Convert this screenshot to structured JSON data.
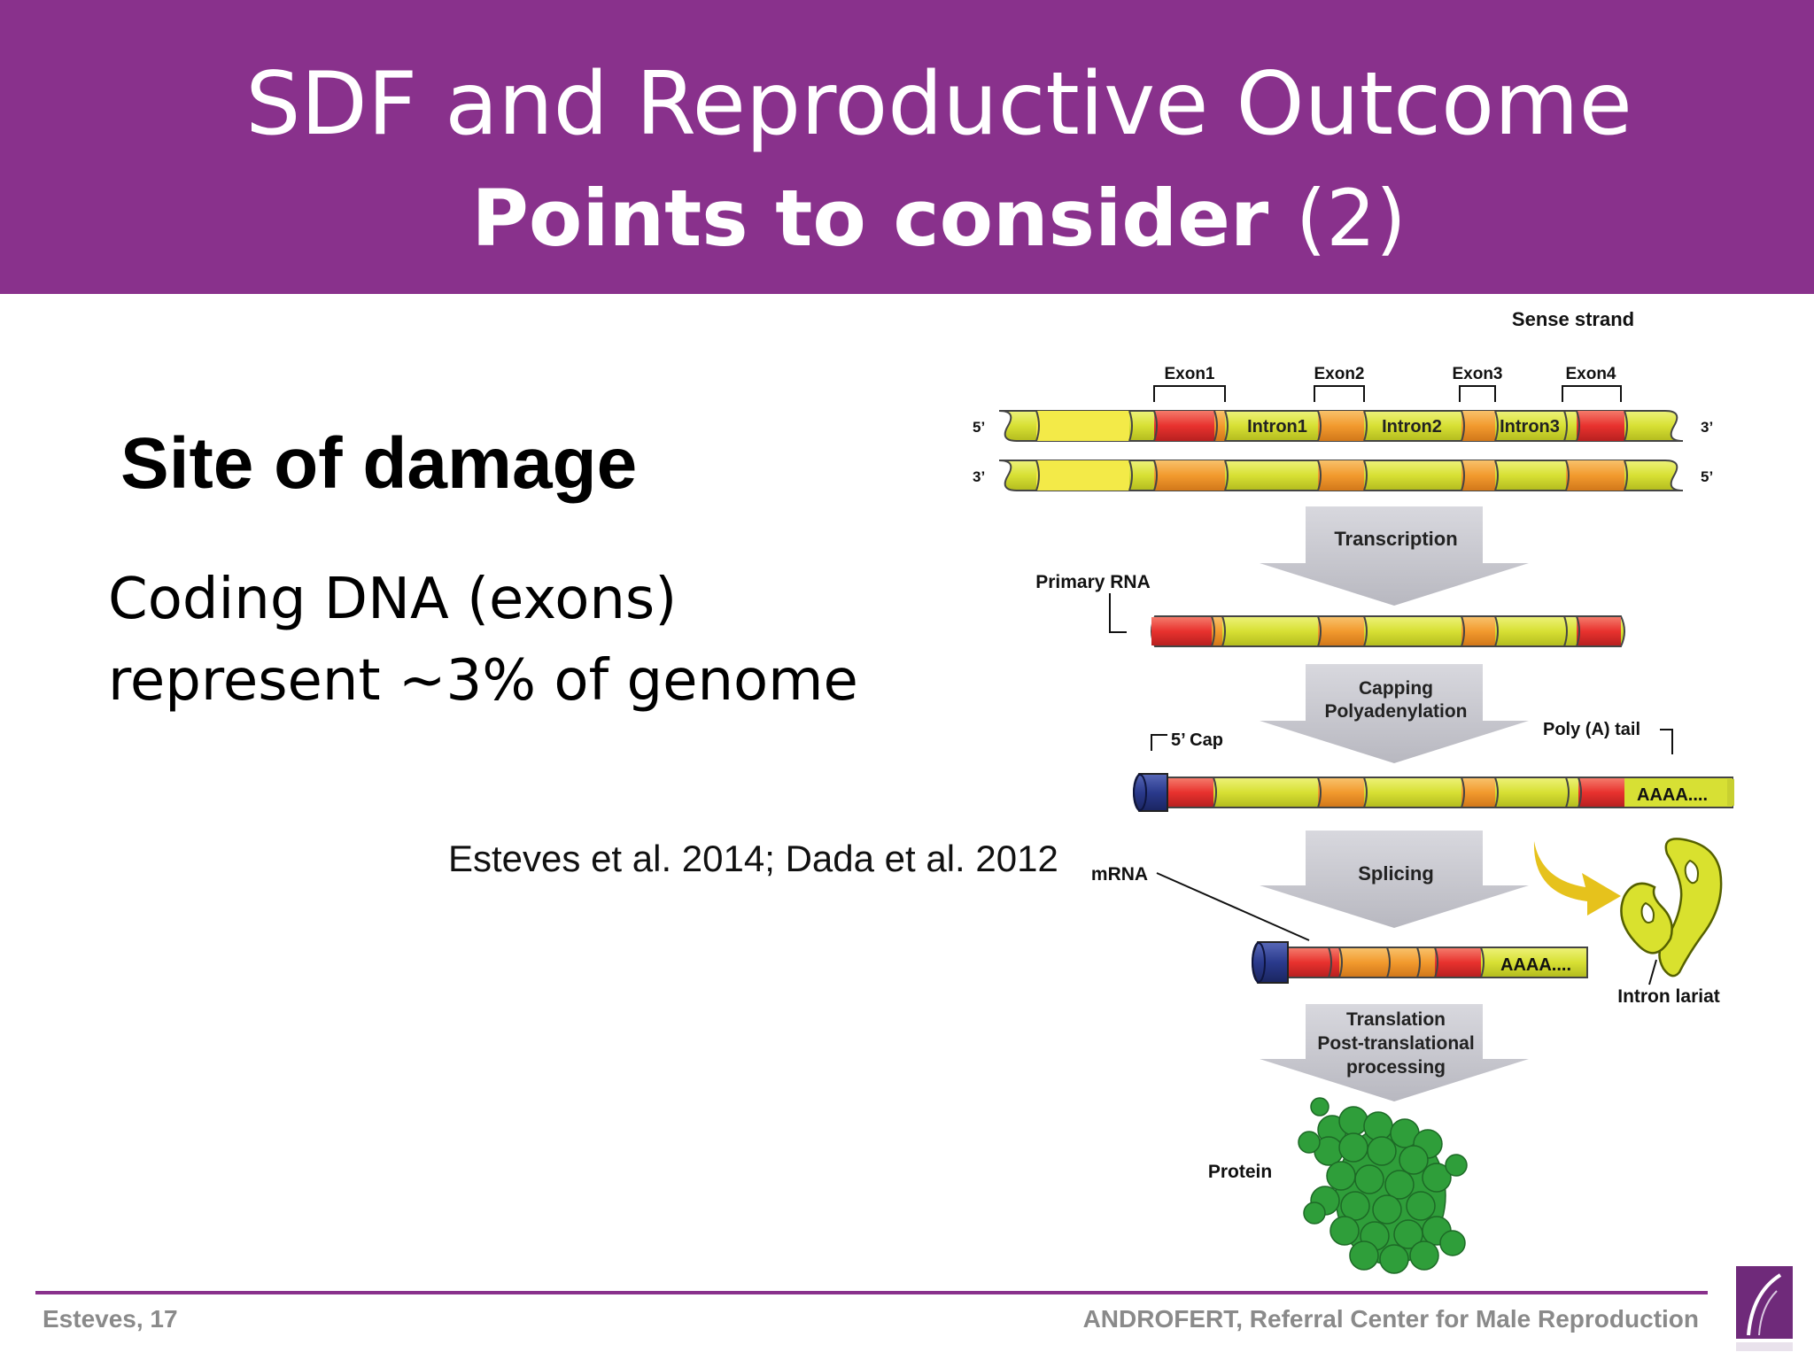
{
  "slide": {
    "title_line1": "SDF and Reproductive Outcome",
    "title_line2_main": "Points to consider ",
    "title_line2_num": "(2)",
    "heading": "Site of damage",
    "body_line1": "Coding DNA (exons)",
    "body_line2": "represent ~3% of genome",
    "citation": "Esteves et al. 2014; Dada et al. 2012"
  },
  "diagram": {
    "sense_strand": "Sense strand",
    "exon1": "Exon1",
    "exon2": "Exon2",
    "exon3": "Exon3",
    "exon4": "Exon4",
    "intron1": "Intron1",
    "intron2": "Intron2",
    "intron3": "Intron3",
    "end_5_top": "5’",
    "end_3_top": "3’",
    "end_3_bottom": "3’",
    "end_5_bottom": "5’",
    "transcription": "Transcription",
    "primary_rna": "Primary RNA",
    "capping": "Capping",
    "polyadenylation": "Polyadenylation",
    "cap_5": "5’ Cap",
    "poly_a_tail": "Poly (A) tail",
    "aaaa_1": "AAAA....",
    "splicing": "Splicing",
    "mrna": "mRNA",
    "aaaa_2": "AAAA....",
    "intron_lariat": "Intron lariat",
    "translation": "Translation",
    "post_translational": "Post-translational",
    "processing": "processing",
    "protein": "Protein"
  },
  "footer": {
    "left": "Esteves, 17",
    "right": "ANDROFERT, Referral Center for Male Reproduction"
  },
  "colors": {
    "brand_purple": "#89318c",
    "dna_yellow": "#d7e034",
    "exon_red": "#e8322e",
    "exon_orange": "#f29a2e",
    "cap_blue": "#2a3a8c",
    "arrow_gray": "#c8c8ce",
    "protein_green": "#2f9e3a"
  }
}
